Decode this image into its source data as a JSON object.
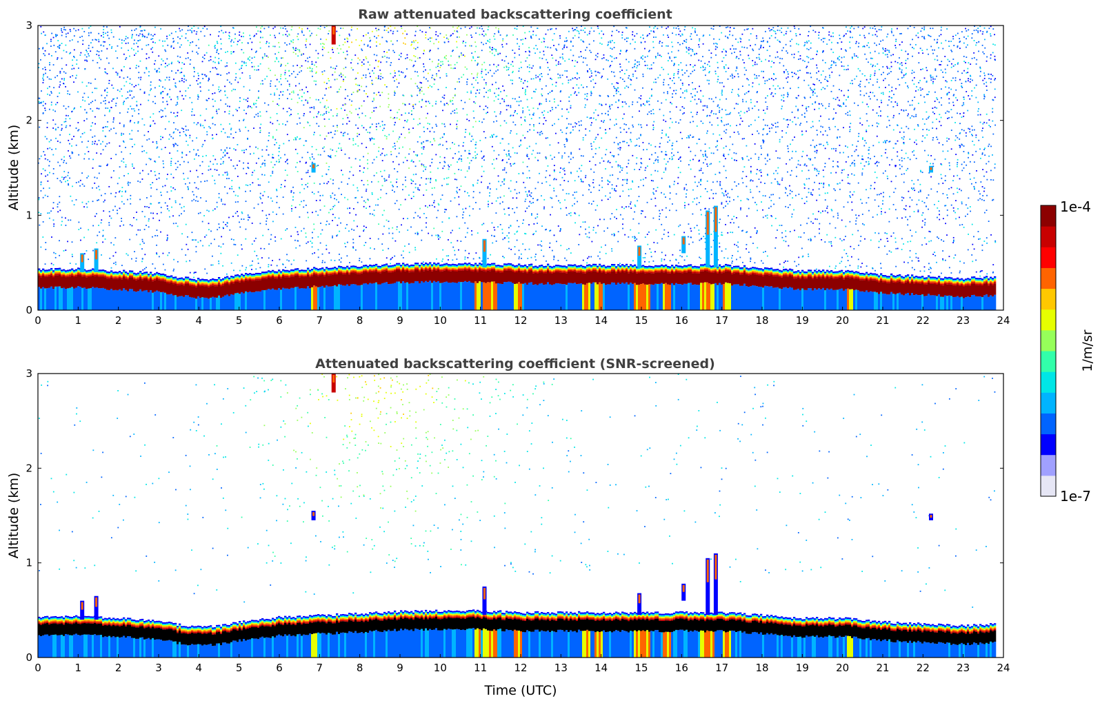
{
  "chart_data": [
    {
      "type": "heatmap",
      "title": "Raw attenuated backscattering coefficient",
      "xlabel": "",
      "ylabel": "Altitude (km)",
      "xlim": [
        0,
        24
      ],
      "ylim": [
        0,
        3
      ],
      "xticks": [
        "0",
        "1",
        "2",
        "3",
        "4",
        "5",
        "6",
        "7",
        "8",
        "9",
        "10",
        "11",
        "12",
        "13",
        "14",
        "15",
        "16",
        "17",
        "18",
        "19",
        "20",
        "21",
        "22",
        "23",
        "24"
      ],
      "yticks": [
        "0",
        "1",
        "2",
        "3"
      ],
      "data_end_time": 23.85,
      "colorscale": "log jet-like, white below 1e-7",
      "boundary_layer_top_km": {
        "x": [
          0,
          1,
          2,
          3,
          3.5,
          4,
          4.5,
          5,
          5.5,
          6,
          7,
          8,
          9,
          10,
          11,
          12,
          13,
          14,
          15,
          16,
          17,
          18,
          19,
          20,
          21,
          22,
          23,
          23.85
        ],
        "y": [
          0.36,
          0.36,
          0.34,
          0.31,
          0.27,
          0.25,
          0.26,
          0.3,
          0.33,
          0.35,
          0.37,
          0.39,
          0.41,
          0.42,
          0.42,
          0.4,
          0.4,
          0.4,
          0.4,
          0.4,
          0.4,
          0.37,
          0.34,
          0.34,
          0.3,
          0.28,
          0.26,
          0.28
        ]
      },
      "aerosol_plume_center_time": 8.5,
      "strong_return_columns_time": [
        6.85,
        10.9,
        11.1,
        11.3,
        11.9,
        13.6,
        13.9,
        14.9,
        15.1,
        15.6,
        16.5,
        16.7,
        17.1,
        20.15
      ],
      "elevated_features": [
        {
          "t": 1.1,
          "z0": 0.4,
          "z1": 0.6
        },
        {
          "t": 1.45,
          "z0": 0.4,
          "z1": 0.65
        },
        {
          "t": 6.85,
          "z0": 1.45,
          "z1": 1.55
        },
        {
          "t": 11.1,
          "z0": 0.45,
          "z1": 0.75
        },
        {
          "t": 14.95,
          "z0": 0.45,
          "z1": 0.68
        },
        {
          "t": 16.05,
          "z0": 0.6,
          "z1": 0.78
        },
        {
          "t": 16.65,
          "z0": 0.45,
          "z1": 1.05
        },
        {
          "t": 16.85,
          "z0": 0.45,
          "z1": 1.1
        },
        {
          "t": 22.2,
          "z0": 1.45,
          "z1": 1.52
        },
        {
          "t": 7.35,
          "z0": 2.8,
          "z1": 3.0
        }
      ]
    },
    {
      "type": "heatmap",
      "title": "Attenuated backscattering coefficient (SNR-screened)",
      "xlabel": "Time (UTC)",
      "ylabel": "Altitude (km)",
      "xlim": [
        0,
        24
      ],
      "ylim": [
        0,
        3
      ],
      "xticks": [
        "0",
        "1",
        "2",
        "3",
        "4",
        "5",
        "6",
        "7",
        "8",
        "9",
        "10",
        "11",
        "12",
        "13",
        "14",
        "15",
        "16",
        "17",
        "18",
        "19",
        "20",
        "21",
        "22",
        "23",
        "24"
      ],
      "yticks": [
        "0",
        "1",
        "2",
        "3"
      ],
      "data_end_time": 23.85,
      "colorscale": "log jet-like, white below 1e-7",
      "screened": true
    }
  ],
  "colorbar": {
    "label": "1/m/sr",
    "max_label": "1e-4",
    "min_label": "1e-7",
    "scale": "log",
    "colors": [
      "#e6e6f5",
      "#a0a0ff",
      "#0000ff",
      "#0064ff",
      "#00b4ff",
      "#00e6e6",
      "#32ffaa",
      "#96ff5a",
      "#e6ff00",
      "#ffc800",
      "#ff6400",
      "#ff0000",
      "#c80000",
      "#8c0000"
    ]
  }
}
